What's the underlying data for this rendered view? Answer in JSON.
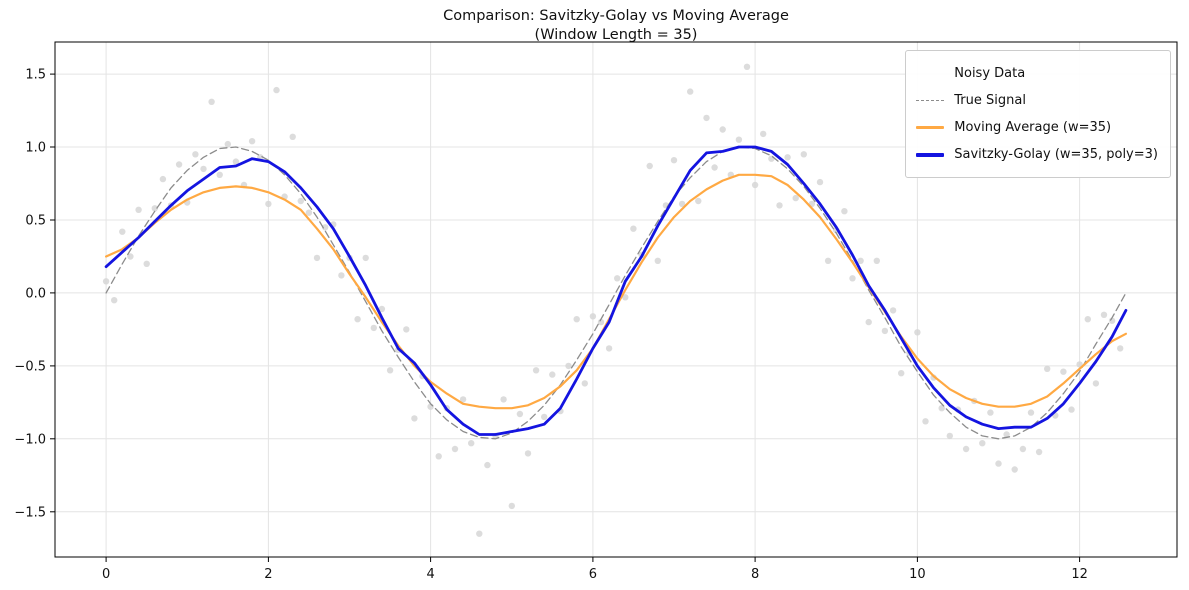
{
  "chart_data": {
    "type": "line+scatter",
    "title": "Comparison: Savitzky-Golay vs Moving Average",
    "subtitle": "(Window Length = 35)",
    "xlim": [
      -0.63,
      13.2
    ],
    "ylim": [
      -1.81,
      1.72
    ],
    "xticks": [
      0,
      2,
      4,
      6,
      8,
      10,
      12
    ],
    "xtick_labels": [
      "0",
      "2",
      "4",
      "6",
      "8",
      "10",
      "12"
    ],
    "yticks": [
      -1.5,
      -1.0,
      -0.5,
      0.0,
      0.5,
      1.0,
      1.5
    ],
    "ytick_labels": [
      "−1.5",
      "−1.0",
      "−0.5",
      "0.0",
      "0.5",
      "1.0",
      "1.5"
    ],
    "grid": true,
    "legend_position": "upper right",
    "style": {
      "grid": "#e4e4e4",
      "spine": "#000000",
      "background": "#ffffff",
      "tick_text": "#111111"
    },
    "scatter": {
      "name": "Noisy Data",
      "color": "#d6d6d6",
      "x": [
        0.0,
        0.1,
        0.2,
        0.3,
        0.4,
        0.5,
        0.6,
        0.7,
        0.8,
        0.9,
        1.0,
        1.1,
        1.2,
        1.3,
        1.4,
        1.5,
        1.6,
        1.7,
        1.8,
        1.9,
        2.0,
        2.1,
        2.2,
        2.3,
        2.4,
        2.5,
        2.6,
        2.7,
        2.8,
        2.9,
        3.0,
        3.1,
        3.2,
        3.3,
        3.4,
        3.5,
        3.6,
        3.7,
        3.8,
        3.9,
        4.0,
        4.1,
        4.2,
        4.3,
        4.4,
        4.5,
        4.6,
        4.7,
        4.8,
        4.9,
        5.0,
        5.1,
        5.2,
        5.3,
        5.4,
        5.5,
        5.6,
        5.7,
        5.8,
        5.9,
        6.0,
        6.1,
        6.2,
        6.3,
        6.4,
        6.5,
        6.6,
        6.7,
        6.8,
        6.9,
        7.0,
        7.1,
        7.2,
        7.3,
        7.4,
        7.5,
        7.6,
        7.7,
        7.8,
        7.9,
        8.0,
        8.1,
        8.2,
        8.3,
        8.4,
        8.5,
        8.6,
        8.7,
        8.8,
        8.9,
        9.0,
        9.1,
        9.2,
        9.3,
        9.4,
        9.5,
        9.6,
        9.7,
        9.8,
        9.9,
        10.0,
        10.1,
        10.2,
        10.3,
        10.4,
        10.5,
        10.6,
        10.7,
        10.8,
        10.9,
        11.0,
        11.1,
        11.2,
        11.3,
        11.4,
        11.5,
        11.6,
        11.7,
        11.8,
        11.9,
        12.0,
        12.1,
        12.2,
        12.3,
        12.4,
        12.5
      ],
      "y": [
        0.08,
        -0.05,
        0.42,
        0.25,
        0.57,
        0.2,
        0.58,
        0.78,
        0.6,
        0.88,
        0.62,
        0.95,
        0.85,
        1.31,
        0.81,
        1.02,
        0.9,
        0.74,
        1.04,
        0.93,
        0.61,
        1.39,
        0.66,
        1.07,
        0.63,
        0.55,
        0.24,
        0.45,
        0.47,
        0.12,
        0.24,
        -0.18,
        0.24,
        -0.24,
        -0.11,
        -0.53,
        -0.39,
        -0.25,
        -0.86,
        -0.57,
        -0.78,
        -1.12,
        -0.79,
        -1.07,
        -0.73,
        -1.03,
        -1.65,
        -1.18,
        -0.98,
        -0.73,
        -1.46,
        -0.83,
        -1.1,
        -0.53,
        -0.85,
        -0.56,
        -0.81,
        -0.5,
        -0.18,
        -0.62,
        -0.16,
        -0.2,
        -0.38,
        0.1,
        -0.03,
        0.44,
        0.26,
        0.87,
        0.22,
        0.6,
        0.91,
        0.61,
        1.38,
        0.63,
        1.2,
        0.86,
        1.12,
        0.81,
        1.05,
        1.55,
        0.74,
        1.09,
        0.92,
        0.6,
        0.93,
        0.65,
        0.95,
        0.61,
        0.76,
        0.22,
        0.43,
        0.56,
        0.1,
        0.22,
        -0.2,
        0.22,
        -0.26,
        -0.12,
        -0.55,
        -0.41,
        -0.27,
        -0.88,
        -0.58,
        -0.79,
        -0.98,
        -0.8,
        -1.07,
        -0.74,
        -1.03,
        -0.82,
        -1.17,
        -0.97,
        -1.21,
        -1.07,
        -0.82,
        -1.09,
        -0.52,
        -0.84,
        -0.54,
        -0.8,
        -0.49,
        -0.18,
        -0.62,
        -0.15,
        -0.19,
        -0.38
      ]
    },
    "line_x": [
      0.0,
      0.2,
      0.4,
      0.6,
      0.8,
      1.0,
      1.2,
      1.4,
      1.6,
      1.8,
      2.0,
      2.2,
      2.4,
      2.6,
      2.8,
      3.0,
      3.2,
      3.4,
      3.6,
      3.8,
      4.0,
      4.2,
      4.4,
      4.6,
      4.8,
      5.0,
      5.2,
      5.4,
      5.6,
      5.8,
      6.0,
      6.2,
      6.4,
      6.6,
      6.8,
      7.0,
      7.2,
      7.4,
      7.6,
      7.8,
      8.0,
      8.2,
      8.4,
      8.6,
      8.8,
      9.0,
      9.2,
      9.4,
      9.6,
      9.8,
      10.0,
      10.2,
      10.4,
      10.6,
      10.8,
      11.0,
      11.2,
      11.4,
      11.6,
      11.8,
      12.0,
      12.2,
      12.4,
      12.57
    ],
    "lines": [
      {
        "name": "True Signal",
        "color": "#8c8c8c",
        "width": 1.3,
        "dash": "7 4",
        "y": [
          0.0,
          0.2,
          0.39,
          0.56,
          0.72,
          0.84,
          0.93,
          0.99,
          1.0,
          0.97,
          0.91,
          0.81,
          0.68,
          0.52,
          0.33,
          0.14,
          -0.06,
          -0.26,
          -0.44,
          -0.61,
          -0.76,
          -0.87,
          -0.95,
          -0.99,
          -1.0,
          -0.96,
          -0.88,
          -0.77,
          -0.63,
          -0.46,
          -0.28,
          -0.08,
          0.12,
          0.31,
          0.49,
          0.66,
          0.79,
          0.9,
          0.97,
          1.0,
          0.99,
          0.94,
          0.85,
          0.73,
          0.58,
          0.41,
          0.22,
          0.02,
          -0.17,
          -0.37,
          -0.54,
          -0.7,
          -0.82,
          -0.92,
          -0.98,
          -1.0,
          -0.98,
          -0.92,
          -0.82,
          -0.69,
          -0.54,
          -0.35,
          -0.17,
          0.0
        ]
      },
      {
        "name": "Moving Average (w=35)",
        "color": "#ffa943",
        "width": 2.2,
        "dash": "",
        "y": [
          0.25,
          0.3,
          0.38,
          0.48,
          0.57,
          0.64,
          0.69,
          0.72,
          0.73,
          0.72,
          0.69,
          0.64,
          0.57,
          0.44,
          0.3,
          0.13,
          -0.03,
          -0.2,
          -0.36,
          -0.5,
          -0.61,
          -0.69,
          -0.76,
          -0.78,
          -0.79,
          -0.79,
          -0.77,
          -0.72,
          -0.64,
          -0.53,
          -0.38,
          -0.18,
          0.02,
          0.21,
          0.38,
          0.52,
          0.63,
          0.71,
          0.77,
          0.81,
          0.81,
          0.8,
          0.74,
          0.64,
          0.52,
          0.37,
          0.21,
          0.04,
          -0.13,
          -0.3,
          -0.45,
          -0.57,
          -0.66,
          -0.72,
          -0.76,
          -0.78,
          -0.78,
          -0.76,
          -0.71,
          -0.62,
          -0.52,
          -0.42,
          -0.33,
          -0.28
        ]
      },
      {
        "name": "Savitzky-Golay (w=35, poly=3)",
        "color": "#1414e0",
        "width": 2.8,
        "dash": "",
        "y": [
          0.18,
          0.28,
          0.38,
          0.49,
          0.6,
          0.7,
          0.78,
          0.86,
          0.87,
          0.92,
          0.9,
          0.83,
          0.72,
          0.59,
          0.44,
          0.25,
          0.05,
          -0.17,
          -0.38,
          -0.48,
          -0.63,
          -0.8,
          -0.9,
          -0.97,
          -0.97,
          -0.95,
          -0.93,
          -0.9,
          -0.79,
          -0.59,
          -0.38,
          -0.2,
          0.08,
          0.25,
          0.46,
          0.65,
          0.84,
          0.96,
          0.97,
          1.0,
          1.0,
          0.97,
          0.88,
          0.75,
          0.61,
          0.45,
          0.26,
          0.05,
          -0.12,
          -0.31,
          -0.5,
          -0.65,
          -0.77,
          -0.85,
          -0.9,
          -0.93,
          -0.92,
          -0.92,
          -0.86,
          -0.76,
          -0.62,
          -0.47,
          -0.3,
          -0.12
        ]
      }
    ]
  }
}
